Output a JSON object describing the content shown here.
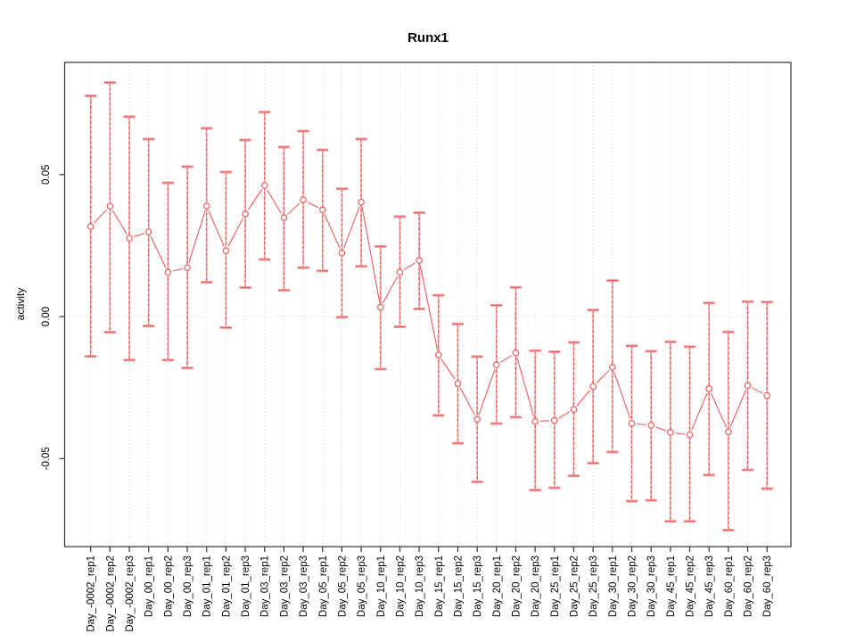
{
  "window": {
    "background": "#ffffff"
  },
  "chart_data": {
    "type": "line",
    "title": "Runx1",
    "xlabel": "",
    "ylabel": "activity",
    "legend_position": "none",
    "categories": [
      "Day_-0002_rep1",
      "Day_-0002_rep2",
      "Day_-0002_rep3",
      "Day_00_rep1",
      "Day_00_rep2",
      "Day_00_rep3",
      "Day_01_rep1",
      "Day_01_rep2",
      "Day_01_rep3",
      "Day_03_rep1",
      "Day_03_rep2",
      "Day_03_rep3",
      "Day_05_rep1",
      "Day_05_rep2",
      "Day_05_rep3",
      "Day_10_rep1",
      "Day_10_rep2",
      "Day_10_rep3",
      "Day_15_rep1",
      "Day_15_rep2",
      "Day_15_rep3",
      "Day_20_rep1",
      "Day_20_rep2",
      "Day_20_rep3",
      "Day_25_rep1",
      "Day_25_rep2",
      "Day_25_rep3",
      "Day_30_rep1",
      "Day_30_rep2",
      "Day_30_rep3",
      "Day_45_rep1",
      "Day_45_rep2",
      "Day_45_rep3",
      "Day_60_rep1",
      "Day_60_rep2",
      "Day_60_rep3"
    ],
    "series": [
      {
        "name": "activity",
        "marker": "open-circle",
        "values": [
          0.0317,
          0.0389,
          0.0276,
          0.0298,
          0.0156,
          0.0172,
          0.0389,
          0.0232,
          0.0361,
          0.0462,
          0.0348,
          0.0411,
          0.0376,
          0.0224,
          0.0403,
          0.0033,
          0.0156,
          0.0198,
          -0.0135,
          -0.0236,
          -0.0362,
          -0.017,
          -0.0128,
          -0.0369,
          -0.0366,
          -0.0327,
          -0.0246,
          -0.0178,
          -0.0376,
          -0.0383,
          -0.0408,
          -0.0416,
          -0.0254,
          -0.0406,
          -0.0243,
          -0.0278
        ],
        "error_lower": [
          -0.014,
          -0.0055,
          -0.0153,
          -0.0033,
          -0.0153,
          -0.0181,
          0.0121,
          -0.0039,
          0.0102,
          0.0201,
          0.0093,
          0.0172,
          0.0161,
          -0.0002,
          0.0177,
          -0.0185,
          -0.0036,
          0.0027,
          -0.0348,
          -0.0446,
          -0.0582,
          -0.0377,
          -0.0354,
          -0.0611,
          -0.0603,
          -0.0561,
          -0.0516,
          -0.0477,
          -0.065,
          -0.0647,
          -0.0721,
          -0.0721,
          -0.0558,
          -0.0752,
          -0.054,
          -0.0606
        ],
        "error_upper": [
          0.0777,
          0.0824,
          0.0704,
          0.0625,
          0.0471,
          0.0528,
          0.0663,
          0.0509,
          0.0622,
          0.072,
          0.0597,
          0.0653,
          0.0587,
          0.045,
          0.0625,
          0.0247,
          0.0352,
          0.0366,
          0.0075,
          -0.0026,
          -0.0141,
          0.004,
          0.0103,
          -0.012,
          -0.0124,
          -0.0091,
          0.0023,
          0.0127,
          -0.0103,
          -0.0122,
          -0.0089,
          -0.0106,
          0.0048,
          -0.0054,
          0.0053,
          0.0051
        ]
      }
    ],
    "yticks": {
      "values": [
        0.05,
        0.0,
        -0.05
      ],
      "labels": [
        "0.05",
        "0.00",
        "-0.05"
      ]
    },
    "ylim": [
      -0.081,
      0.0895
    ],
    "grid": {
      "vertical_dotted_per_category": true,
      "horizontal_dotted_at_zero": true
    },
    "colors": {
      "series_line": "#ef5a5a",
      "marker_stroke": "#ef5a5a",
      "error_bar_solid": "#f7a8a8",
      "error_bar_dash": "#dd4a4a",
      "error_cap_band": "#f7a2a2",
      "error_cap_core": "#e85e5e",
      "grid": "#d4d4d4",
      "frame": "#333333",
      "tick": "#333333",
      "text": "#000000"
    }
  }
}
